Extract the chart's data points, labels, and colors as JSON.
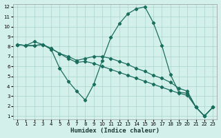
{
  "xlabel": "Humidex (Indice chaleur)",
  "bg_color": "#d4f0eb",
  "grid_color": "#aad4cc",
  "line_color": "#1a6e5e",
  "xlim_min": -0.5,
  "xlim_max": 23.5,
  "ylim_min": 0.7,
  "ylim_max": 12.3,
  "xticks": [
    0,
    1,
    2,
    3,
    4,
    5,
    6,
    7,
    8,
    9,
    10,
    11,
    12,
    13,
    14,
    15,
    16,
    17,
    18,
    19,
    20,
    21,
    22,
    23
  ],
  "yticks": [
    1,
    2,
    3,
    4,
    5,
    6,
    7,
    8,
    9,
    10,
    11,
    12
  ],
  "series1_x": [
    0,
    1,
    2,
    3,
    4,
    5,
    6,
    7,
    8,
    9,
    10,
    11,
    12,
    13,
    14,
    15,
    16,
    17,
    18,
    19,
    20,
    21,
    22,
    23
  ],
  "series1_y": [
    8.2,
    8.1,
    8.5,
    8.2,
    7.7,
    5.8,
    4.5,
    3.5,
    2.6,
    4.2,
    6.6,
    8.9,
    10.3,
    11.3,
    11.8,
    12.0,
    10.4,
    8.1,
    5.2,
    3.4,
    3.3,
    1.9,
    1.0,
    1.9
  ],
  "series2_x": [
    0,
    1,
    2,
    3,
    4,
    5,
    6,
    7,
    8,
    9,
    10,
    11,
    12,
    13,
    14,
    15,
    16,
    17,
    18,
    19,
    20,
    21,
    22,
    23
  ],
  "series2_y": [
    8.2,
    8.1,
    8.1,
    8.2,
    7.8,
    7.3,
    7.0,
    6.6,
    6.8,
    7.0,
    7.0,
    6.8,
    6.5,
    6.2,
    5.8,
    5.5,
    5.1,
    4.8,
    4.4,
    3.8,
    3.5,
    1.9,
    1.0,
    1.9
  ],
  "series3_x": [
    0,
    1,
    2,
    3,
    4,
    5,
    6,
    7,
    8,
    9,
    10,
    11,
    12,
    13,
    14,
    15,
    16,
    17,
    18,
    19,
    20,
    21,
    22,
    23
  ],
  "series3_y": [
    8.2,
    8.1,
    8.1,
    8.2,
    7.8,
    7.3,
    6.8,
    6.4,
    6.5,
    6.3,
    6.0,
    5.7,
    5.4,
    5.1,
    4.8,
    4.5,
    4.2,
    3.9,
    3.6,
    3.3,
    3.1,
    1.9,
    1.0,
    1.9
  ]
}
